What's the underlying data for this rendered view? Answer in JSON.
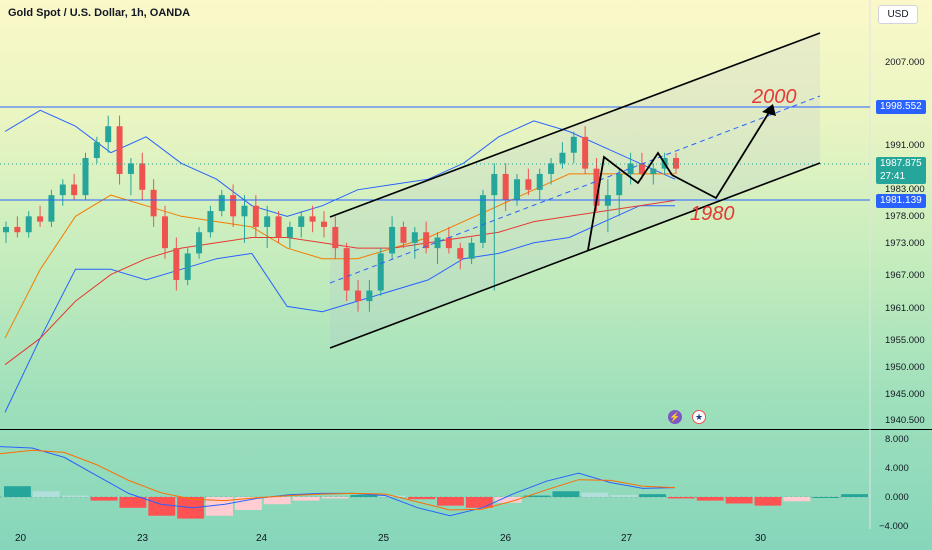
{
  "chart_title": "Gold Spot / U.S. Dollar, 1h, OANDA",
  "currency_button": "USD",
  "price_tags": {
    "upper_line": "1998.552",
    "current_price": "1987.875",
    "countdown": "27:41",
    "lower_line": "1981.139"
  },
  "annotations": {
    "target_high": "2000",
    "target_low": "1980"
  },
  "colors": {
    "up": "#26a69a",
    "down": "#ef5350",
    "band": "#2962ff",
    "ma_orange": "#f57c00",
    "ma_red": "#e53935",
    "line_tag": "#2962ff"
  },
  "chart_data": {
    "type": "candlestick",
    "title": "Gold Spot / U.S. Dollar, 1h, OANDA",
    "price_axis_ticks": [
      "2007.000",
      "1991.000",
      "1983.000",
      "1978.000",
      "1973.000",
      "1967.000",
      "1961.000",
      "1955.000",
      "1950.000",
      "1945.000",
      "1940.500"
    ],
    "macd_axis_ticks": [
      "8.000",
      "4.000",
      "0.000",
      "−4.000"
    ],
    "x_tick_labels": [
      "20",
      "23",
      "24",
      "25",
      "26",
      "27",
      "30"
    ],
    "horizontal_levels": [
      1998.552,
      1981.139
    ],
    "current_price": 1987.875,
    "candles": [
      [
        1975,
        1977,
        1973,
        1976
      ],
      [
        1976,
        1978,
        1974,
        1975
      ],
      [
        1975,
        1979,
        1974,
        1978
      ],
      [
        1978,
        1980,
        1976,
        1977
      ],
      [
        1977,
        1983,
        1976,
        1982
      ],
      [
        1982,
        1985,
        1980,
        1984
      ],
      [
        1984,
        1986,
        1981,
        1982
      ],
      [
        1982,
        1990,
        1981,
        1989
      ],
      [
        1989,
        1993,
        1988,
        1992
      ],
      [
        1992,
        1997,
        1990,
        1995
      ],
      [
        1995,
        1997,
        1984,
        1986
      ],
      [
        1986,
        1989,
        1982,
        1988
      ],
      [
        1988,
        1990,
        1981,
        1983
      ],
      [
        1983,
        1985,
        1976,
        1978
      ],
      [
        1978,
        1980,
        1970,
        1972
      ],
      [
        1972,
        1974,
        1964,
        1966
      ],
      [
        1966,
        1972,
        1965,
        1971
      ],
      [
        1971,
        1976,
        1970,
        1975
      ],
      [
        1975,
        1980,
        1974,
        1979
      ],
      [
        1979,
        1983,
        1978,
        1982
      ],
      [
        1982,
        1984,
        1976,
        1978
      ],
      [
        1978,
        1982,
        1973,
        1980
      ],
      [
        1980,
        1982,
        1974,
        1976
      ],
      [
        1976,
        1980,
        1972,
        1978
      ],
      [
        1978,
        1979,
        1973,
        1974
      ],
      [
        1974,
        1977,
        1972,
        1976
      ],
      [
        1976,
        1979,
        1974,
        1978
      ],
      [
        1978,
        1980,
        1975,
        1977
      ],
      [
        1977,
        1979,
        1974,
        1976
      ],
      [
        1976,
        1978,
        1970,
        1972
      ],
      [
        1972,
        1973,
        1962,
        1964
      ],
      [
        1964,
        1966,
        1960,
        1962
      ],
      [
        1962,
        1966,
        1960,
        1964
      ],
      [
        1964,
        1972,
        1963,
        1971
      ],
      [
        1971,
        1978,
        1970,
        1976
      ],
      [
        1976,
        1977,
        1972,
        1973
      ],
      [
        1973,
        1976,
        1970,
        1975
      ],
      [
        1975,
        1977,
        1971,
        1972
      ],
      [
        1972,
        1975,
        1969,
        1974
      ],
      [
        1974,
        1976,
        1971,
        1972
      ],
      [
        1972,
        1973,
        1968,
        1970
      ],
      [
        1970,
        1974,
        1969,
        1973
      ],
      [
        1973,
        1983,
        1972,
        1982
      ],
      [
        1982,
        1988,
        1964,
        1986
      ],
      [
        1986,
        1988,
        1979,
        1981
      ],
      [
        1981,
        1986,
        1980,
        1985
      ],
      [
        1985,
        1987,
        1982,
        1983
      ],
      [
        1983,
        1987,
        1981,
        1986
      ],
      [
        1986,
        1989,
        1984,
        1988
      ],
      [
        1988,
        1992,
        1987,
        1990
      ],
      [
        1990,
        1994,
        1988,
        1993
      ],
      [
        1993,
        1995,
        1986,
        1987
      ],
      [
        1987,
        1989,
        1979,
        1980
      ],
      [
        1980,
        1985,
        1975,
        1982
      ],
      [
        1982,
        1987,
        1978,
        1986
      ],
      [
        1986,
        1990,
        1984,
        1988
      ],
      [
        1988,
        1990,
        1985,
        1986
      ],
      [
        1986,
        1988,
        1984,
        1987
      ],
      [
        1987,
        1990,
        1986,
        1989
      ],
      [
        1989,
        1990,
        1986,
        1987
      ]
    ],
    "bollinger_upper": [
      1994,
      1998,
      1995,
      1990,
      1993,
      1988,
      1985,
      1980,
      1978,
      1980,
      1983,
      1984,
      1985,
      1988,
      1993,
      1996,
      1994,
      1991,
      1988,
      1985
    ],
    "bollinger_lower": [
      1941,
      1955,
      1968,
      1968,
      1966,
      1968,
      1970,
      1971,
      1961,
      1960,
      1962,
      1964,
      1966,
      1970,
      1971,
      1973,
      1974,
      1977,
      1980,
      1980
    ],
    "ma_orange": [
      1955,
      1968,
      1978,
      1982,
      1980,
      1978,
      1977,
      1976,
      1972,
      1970,
      1970,
      1972,
      1974,
      1977,
      1980,
      1983,
      1986,
      1986,
      1986,
      1986
    ],
    "ma_red": [
      1950,
      1955,
      1962,
      1967,
      1970,
      1972,
      1973,
      1974,
      1974,
      1973,
      1972,
      1972,
      1973,
      1974,
      1975,
      1977,
      1978,
      1979,
      1980,
      1981
    ],
    "macd_histogram": [
      1.5,
      0.8,
      0.2,
      -0.5,
      -1.5,
      -2.6,
      -3.0,
      -2.6,
      -1.8,
      -1.0,
      -0.5,
      -0.2,
      0.3,
      0.2,
      -0.3,
      -1.2,
      -1.5,
      -0.8,
      0.2,
      0.8,
      0.6,
      0.3,
      0.4,
      -0.2,
      -0.5,
      -0.9,
      -1.2,
      -0.6,
      0.0,
      0.4
    ],
    "macd_line": [
      7,
      6.8,
      5.5,
      3,
      0.5,
      -1,
      -1.5,
      -1,
      -0.2,
      0.3,
      0.5,
      0.5,
      0.2,
      -1.5,
      -2.6,
      -1.5,
      0.5,
      2.2,
      3.3,
      2,
      1.2,
      1.3
    ],
    "signal_line": [
      6,
      6.5,
      6.2,
      4.5,
      2.3,
      0.6,
      -0.3,
      -0.5,
      -0.1,
      0.2,
      0.4,
      0.5,
      0.4,
      -0.7,
      -1.8,
      -1.7,
      -0.5,
      1,
      2.4,
      2.3,
      1.5,
      1.3
    ]
  }
}
